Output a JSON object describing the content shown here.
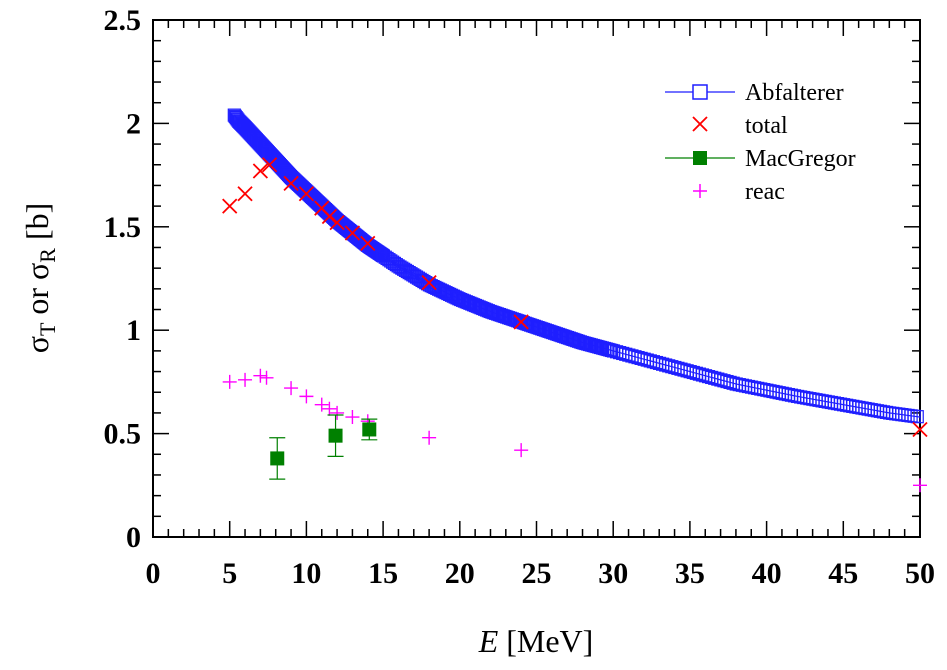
{
  "chart_data": {
    "type": "scatter",
    "xlabel_italic": "E",
    "xlabel_rest": " [MeV]",
    "ylabel": {
      "sigma1": "σ",
      "sub1": "T",
      "mid": " or ",
      "sigma2": "σ",
      "sub2": "R",
      "rest": " [b]"
    },
    "xlim": [
      0,
      50
    ],
    "ylim": [
      0,
      2.5
    ],
    "xticks": [
      0,
      5,
      10,
      15,
      20,
      25,
      30,
      35,
      40,
      45,
      50
    ],
    "yticks": [
      0,
      0.5,
      1,
      1.5,
      2,
      2.5
    ],
    "ytick_labels": [
      "0",
      "0.5",
      "1",
      "1.5",
      "2",
      "2.5"
    ],
    "legend_position": "top-right",
    "series": [
      {
        "name": "Abfalterer",
        "marker": "open-square",
        "color": "#1f1fff",
        "line": true,
        "curve": {
          "x": [
            5.3,
            5.6,
            6,
            7,
            8,
            9,
            10,
            11,
            12,
            13,
            14,
            15,
            16,
            18,
            20,
            22,
            24,
            26,
            28,
            30,
            32,
            35,
            38,
            40,
            42,
            45,
            48,
            50
          ],
          "y": [
            2.04,
            2.01,
            1.98,
            1.9,
            1.82,
            1.74,
            1.67,
            1.6,
            1.53,
            1.47,
            1.41,
            1.36,
            1.31,
            1.22,
            1.15,
            1.09,
            1.04,
            0.99,
            0.94,
            0.9,
            0.86,
            0.8,
            0.74,
            0.71,
            0.68,
            0.64,
            0.6,
            0.58
          ]
        }
      },
      {
        "name": "total",
        "marker": "x",
        "color": "#ff0000",
        "x": [
          5,
          6,
          7,
          7.6,
          9,
          10,
          11,
          11.5,
          12,
          13,
          14,
          18,
          24,
          50
        ],
        "y": [
          1.6,
          1.66,
          1.77,
          1.8,
          1.71,
          1.66,
          1.59,
          1.55,
          1.52,
          1.47,
          1.42,
          1.23,
          1.04,
          0.52
        ]
      },
      {
        "name": "MacGregor",
        "marker": "filled-square",
        "color": "#008000",
        "line": true,
        "x": [
          8.1,
          11.9,
          14.1
        ],
        "y": [
          0.38,
          0.49,
          0.52
        ],
        "yerr": [
          0.1,
          0.1,
          0.05
        ]
      },
      {
        "name": "reac",
        "marker": "plus",
        "color": "#ff00ff",
        "x": [
          5,
          6,
          7,
          7.4,
          9,
          10,
          11,
          11.5,
          12,
          13,
          14,
          18,
          24,
          50
        ],
        "y": [
          0.75,
          0.76,
          0.78,
          0.77,
          0.72,
          0.68,
          0.64,
          0.62,
          0.6,
          0.58,
          0.56,
          0.48,
          0.42,
          0.25
        ]
      }
    ]
  }
}
